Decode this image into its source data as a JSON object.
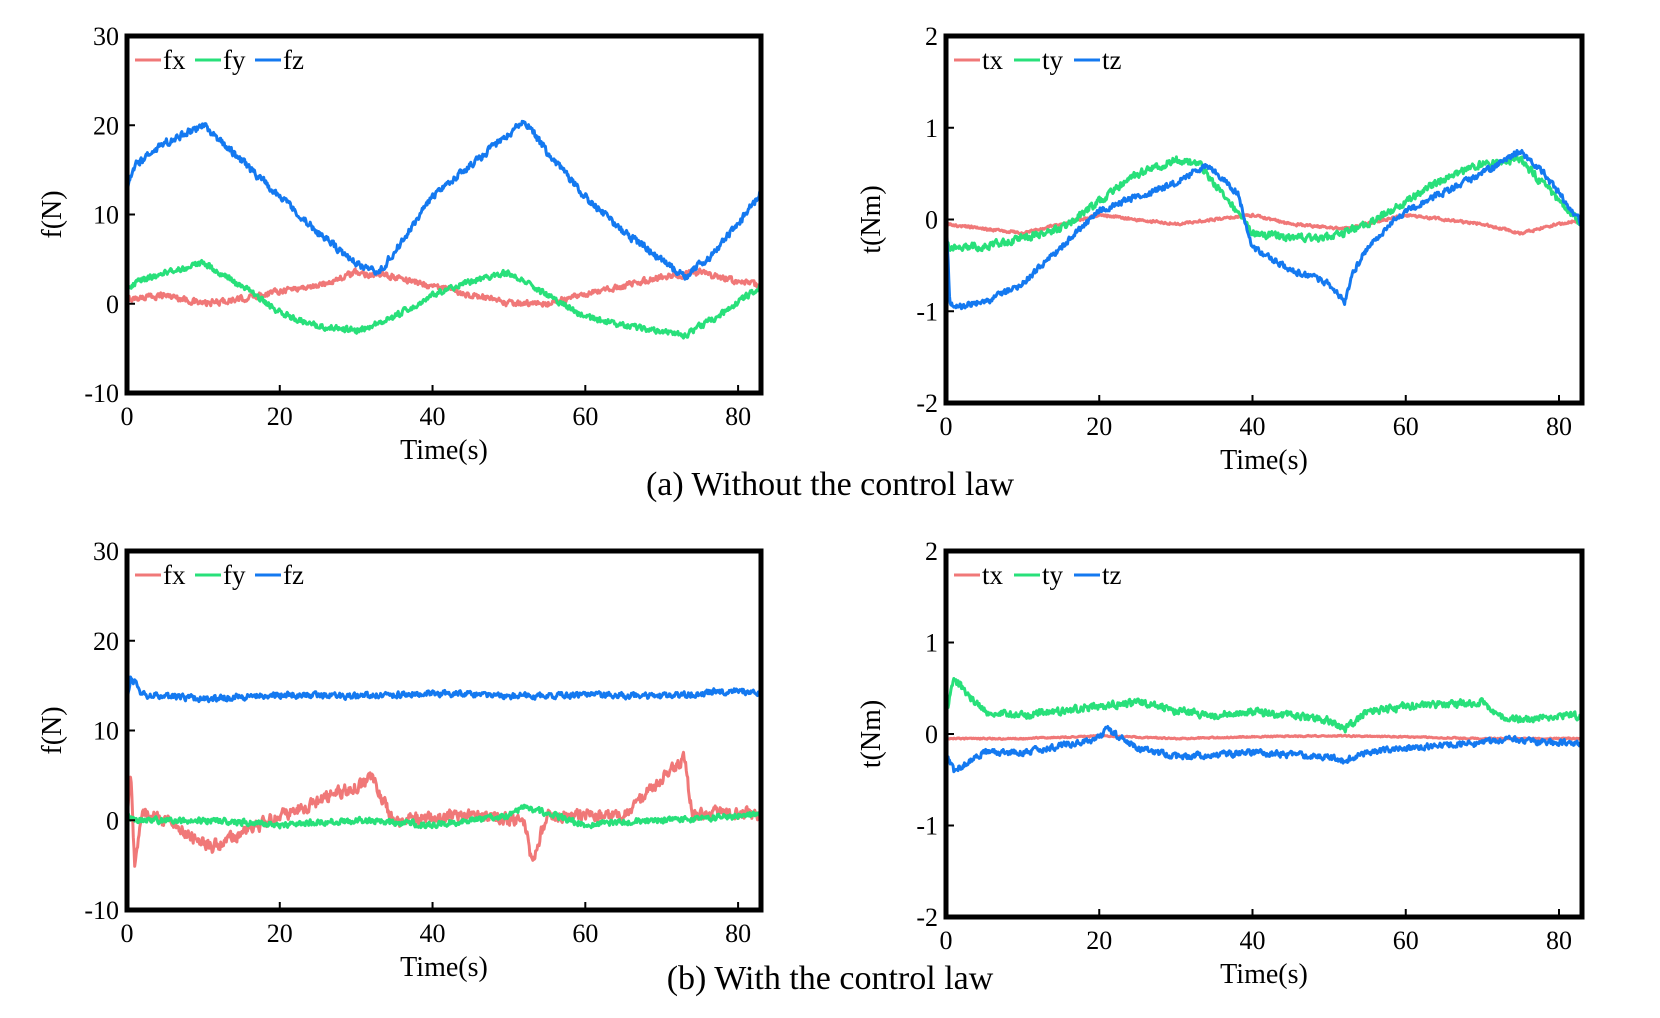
{
  "figure": {
    "caption_a": "(a) Without the control law",
    "caption_b": "(b) With the control law"
  },
  "colors": {
    "fx": "#f07878",
    "fy": "#28e07a",
    "fz": "#1479f0",
    "tx": "#f07878",
    "ty": "#28e07a",
    "tz": "#1479f0"
  },
  "chart_data": [
    {
      "id": "a-force",
      "type": "line",
      "title": "",
      "xlabel": "Time(s)",
      "ylabel": "f(N)",
      "xlim": [
        0,
        83
      ],
      "ylim": [
        -10,
        30
      ],
      "xticks": [
        0,
        20,
        40,
        60,
        80
      ],
      "yticks": [
        -10,
        0,
        10,
        20,
        30
      ],
      "legend": "top-left",
      "series": [
        {
          "name": "fx",
          "color": "#f07878",
          "x": [
            0,
            5,
            10,
            15,
            20,
            25,
            30,
            35,
            40,
            45,
            50,
            55,
            60,
            65,
            70,
            75,
            80,
            83
          ],
          "y": [
            0.5,
            1,
            0,
            0.5,
            1.5,
            2,
            3.5,
            3,
            2,
            1,
            0,
            0,
            1,
            2,
            3,
            3.5,
            2.5,
            2
          ],
          "noise": 0.5
        },
        {
          "name": "fy",
          "color": "#28e07a",
          "x": [
            0,
            5,
            10,
            15,
            20,
            25,
            30,
            35,
            40,
            45,
            50,
            55,
            60,
            65,
            70,
            73,
            78,
            83
          ],
          "y": [
            2,
            3.5,
            4.5,
            2,
            -1,
            -2.5,
            -3,
            -1.5,
            1,
            2.5,
            3.5,
            1,
            -1.5,
            -2.5,
            -3,
            -3.5,
            -1,
            2
          ],
          "noise": 0.5
        },
        {
          "name": "fz",
          "color": "#1479f0",
          "x": [
            0,
            1,
            5,
            10,
            15,
            20,
            25,
            30,
            33,
            36,
            40,
            45,
            50,
            52,
            55,
            60,
            65,
            70,
            73,
            76,
            80,
            83
          ],
          "y": [
            12.5,
            15.5,
            18,
            20,
            16,
            12,
            8,
            4.5,
            3.5,
            7,
            12,
            15.5,
            19,
            20.5,
            17,
            12,
            8,
            5,
            3,
            5,
            9,
            12.5
          ],
          "noise": 0.6
        }
      ]
    },
    {
      "id": "a-torque",
      "type": "line",
      "title": "",
      "xlabel": "Time(s)",
      "ylabel": "t(Nm)",
      "xlim": [
        0,
        83
      ],
      "ylim": [
        -2,
        2
      ],
      "xticks": [
        0,
        20,
        40,
        60,
        80
      ],
      "yticks": [
        -2,
        -1,
        0,
        1,
        2
      ],
      "legend": "top-left",
      "series": [
        {
          "name": "tx",
          "color": "#f07878",
          "x": [
            0,
            10,
            20,
            30,
            40,
            45,
            52,
            60,
            70,
            75,
            80,
            83
          ],
          "y": [
            -0.05,
            -0.15,
            0.05,
            -0.05,
            0.05,
            -0.05,
            -0.1,
            0.05,
            -0.05,
            -0.15,
            -0.05,
            0
          ],
          "noise": 0.02
        },
        {
          "name": "ty",
          "color": "#28e07a",
          "x": [
            0,
            5,
            10,
            15,
            20,
            25,
            30,
            33,
            37,
            40,
            45,
            50,
            55,
            60,
            65,
            70,
            75,
            80,
            83
          ],
          "y": [
            -0.3,
            -0.3,
            -0.2,
            -0.1,
            0.2,
            0.5,
            0.65,
            0.6,
            0.2,
            -0.15,
            -0.2,
            -0.2,
            -0.05,
            0.2,
            0.45,
            0.6,
            0.65,
            0.2,
            -0.05
          ],
          "noise": 0.06
        },
        {
          "name": "tz",
          "color": "#1479f0",
          "x": [
            0,
            0.5,
            1,
            5,
            10,
            15,
            20,
            25,
            30,
            34,
            38,
            40,
            45,
            50,
            52,
            53,
            55,
            60,
            65,
            70,
            75,
            78,
            83
          ],
          "y": [
            0.1,
            -0.9,
            -0.95,
            -0.9,
            -0.7,
            -0.3,
            0.1,
            0.25,
            0.4,
            0.6,
            0.3,
            -0.3,
            -0.55,
            -0.7,
            -0.9,
            -0.6,
            -0.3,
            0.1,
            0.3,
            0.5,
            0.75,
            0.5,
            -0.05
          ],
          "noise": 0.05
        }
      ]
    },
    {
      "id": "b-force",
      "type": "line",
      "title": "",
      "xlabel": "Time(s)",
      "ylabel": "f(N)",
      "xlim": [
        0,
        83
      ],
      "ylim": [
        -10,
        30
      ],
      "xticks": [
        0,
        20,
        40,
        60,
        80
      ],
      "yticks": [
        -10,
        0,
        10,
        20,
        30
      ],
      "legend": "top-left",
      "series": [
        {
          "name": "fx",
          "color": "#f07878",
          "x": [
            0,
            0.5,
            1,
            2,
            5,
            11,
            20,
            32,
            35,
            45,
            52,
            53,
            55,
            65,
            73,
            74,
            80,
            83
          ],
          "y": [
            0,
            5,
            -5,
            1,
            0,
            -3,
            0.5,
            4.5,
            0,
            0.5,
            0,
            -4.5,
            0.5,
            0.5,
            7,
            0.5,
            1,
            0.5
          ],
          "noise": 1.0
        },
        {
          "name": "fy",
          "color": "#28e07a",
          "x": [
            0,
            1,
            10,
            20,
            30,
            40,
            50,
            52,
            60,
            70,
            80,
            83
          ],
          "y": [
            0.5,
            0,
            0,
            -0.5,
            0,
            -0.5,
            0.5,
            1.5,
            -0.5,
            0,
            0.5,
            0.5
          ],
          "noise": 0.5
        },
        {
          "name": "fz",
          "color": "#1479f0",
          "x": [
            0,
            0.5,
            2,
            10,
            20,
            30,
            40,
            50,
            60,
            70,
            80,
            83
          ],
          "y": [
            13.5,
            16,
            14,
            13.5,
            14,
            13.8,
            14.2,
            13.8,
            14,
            13.8,
            14.5,
            14
          ],
          "noise": 0.5
        }
      ]
    },
    {
      "id": "b-torque",
      "type": "line",
      "title": "",
      "xlabel": "Time(s)",
      "ylabel": "t(Nm)",
      "xlim": [
        0,
        83
      ],
      "ylim": [
        -2,
        2
      ],
      "xticks": [
        0,
        20,
        40,
        60,
        80
      ],
      "yticks": [
        -2,
        -1,
        0,
        1,
        2
      ],
      "legend": "top-left",
      "series": [
        {
          "name": "tx",
          "color": "#f07878",
          "x": [
            0,
            10,
            20,
            30,
            40,
            50,
            60,
            70,
            80,
            83
          ],
          "y": [
            -0.05,
            -0.05,
            -0.02,
            -0.05,
            -0.03,
            -0.02,
            -0.03,
            -0.05,
            -0.05,
            -0.05
          ],
          "noise": 0.01
        },
        {
          "name": "ty",
          "color": "#28e07a",
          "x": [
            0,
            1,
            5,
            10,
            20,
            25,
            30,
            35,
            40,
            45,
            50,
            52,
            55,
            60,
            70,
            72,
            75,
            80,
            83
          ],
          "y": [
            0.2,
            0.6,
            0.25,
            0.2,
            0.3,
            0.35,
            0.25,
            0.2,
            0.25,
            0.2,
            0.15,
            0.05,
            0.25,
            0.3,
            0.35,
            0.2,
            0.15,
            0.2,
            0.2
          ],
          "noise": 0.06
        },
        {
          "name": "tz",
          "color": "#1479f0",
          "x": [
            0,
            1,
            5,
            10,
            20,
            21,
            25,
            30,
            40,
            50,
            52,
            55,
            60,
            70,
            73,
            80,
            83
          ],
          "y": [
            -0.2,
            -0.4,
            -0.2,
            -0.2,
            -0.05,
            0.05,
            -0.15,
            -0.25,
            -0.2,
            -0.25,
            -0.3,
            -0.2,
            -0.15,
            -0.1,
            -0.05,
            -0.1,
            -0.1
          ],
          "noise": 0.05
        }
      ]
    }
  ]
}
